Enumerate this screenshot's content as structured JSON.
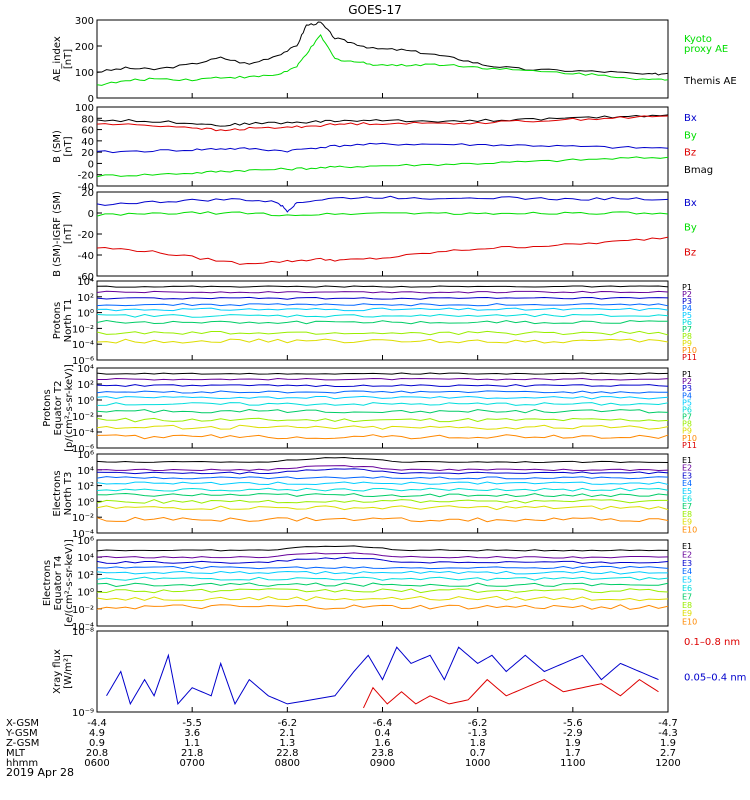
{
  "title": "GOES-17",
  "date_label": "2019 Apr 28",
  "colors": {
    "black": "#000000",
    "green": "#00dd00",
    "blue": "#0000cc",
    "red": "#dd0000",
    "prot": [
      "#000000",
      "#660099",
      "#0000cc",
      "#0066ff",
      "#00ccff",
      "#00dddd",
      "#00cc66",
      "#99ee00",
      "#dddd00",
      "#ff8800",
      "#dd0000"
    ]
  },
  "x_ticks": [
    "0600",
    "0700",
    "0800",
    "0900",
    "1000",
    "1100",
    "1200"
  ],
  "ephemeris": [
    {
      "label": "X-GSM",
      "values": [
        "-4.4",
        "-5.5",
        "-6.2",
        "-6.4",
        "-6.2",
        "-5.6",
        "-4.7"
      ]
    },
    {
      "label": "Y-GSM",
      "values": [
        "4.9",
        "3.6",
        "2.1",
        "0.4",
        "-1.3",
        "-2.9",
        "-4.3"
      ]
    },
    {
      "label": "Z-GSM",
      "values": [
        "0.9",
        "1.1",
        "1.3",
        "1.6",
        "1.8",
        "1.9",
        "1.9"
      ]
    },
    {
      "label": "MLT",
      "values": [
        "20.8",
        "21.8",
        "22.8",
        "23.8",
        "0.7",
        "1.7",
        "2.7"
      ]
    },
    {
      "label": "hhmm",
      "values": [
        "0600",
        "0700",
        "0800",
        "0900",
        "1000",
        "1100",
        "1200"
      ]
    }
  ],
  "chart_data": [
    {
      "type": "line",
      "id": "ae",
      "ylabel": [
        "AE_index",
        "[nT]"
      ],
      "ylim": [
        0,
        300
      ],
      "yticks": [
        "0",
        "100",
        "200",
        "300"
      ],
      "legend": [
        "Kyoto",
        "proxy AE",
        "Themis AE"
      ],
      "series": [
        {
          "name": "Themis AE",
          "x": [
            6.0,
            6.3,
            6.6,
            7.0,
            7.3,
            7.6,
            7.9,
            8.1,
            8.2,
            8.35,
            8.5,
            8.7,
            8.9,
            9.2,
            9.5,
            9.8,
            10.1,
            10.5,
            11.0,
            11.4,
            11.8,
            12.0
          ],
          "y": [
            100,
            115,
            110,
            130,
            155,
            130,
            165,
            200,
            280,
            290,
            230,
            210,
            190,
            185,
            170,
            150,
            125,
            110,
            105,
            100,
            90,
            95
          ]
        },
        {
          "name": "Kyoto proxy AE",
          "x": [
            6.0,
            6.3,
            6.6,
            7.0,
            7.3,
            7.6,
            7.9,
            8.1,
            8.2,
            8.35,
            8.5,
            8.7,
            8.9,
            9.2,
            9.5,
            9.8,
            10.1,
            10.5,
            11.0,
            11.4,
            11.8,
            12.0
          ],
          "y": [
            50,
            65,
            75,
            70,
            80,
            80,
            90,
            120,
            170,
            240,
            150,
            140,
            130,
            125,
            130,
            125,
            115,
            105,
            95,
            85,
            70,
            70
          ]
        }
      ]
    },
    {
      "type": "line",
      "id": "bsm",
      "ylabel": [
        "B (SM)",
        "[nT]"
      ],
      "ylim": [
        -40,
        100
      ],
      "yticks": [
        "-40",
        "-20",
        "0",
        "20",
        "40",
        "60",
        "80",
        "100"
      ],
      "legend": [
        "Bx",
        "By",
        "Bz",
        "Bmag"
      ],
      "series": [
        {
          "name": "Bmag",
          "x": [
            6.0,
            6.5,
            7.0,
            7.3,
            7.6,
            8.0,
            8.3,
            8.6,
            9.0,
            9.5,
            10.0,
            10.5,
            11.0,
            11.5,
            12.0
          ],
          "y": [
            77,
            75,
            72,
            67,
            71,
            72,
            74,
            76,
            76,
            75,
            76,
            78,
            80,
            83,
            86
          ]
        },
        {
          "name": "Bx",
          "x": [
            6.0,
            6.5,
            7.0,
            7.3,
            7.6,
            8.0,
            8.3,
            8.6,
            9.0,
            9.5,
            10.0,
            10.5,
            11.0,
            11.5,
            12.0
          ],
          "y": [
            20,
            22,
            24,
            26,
            26,
            22,
            28,
            32,
            34,
            34,
            33,
            32,
            30,
            28,
            27
          ]
        },
        {
          "name": "By",
          "x": [
            6.0,
            6.5,
            7.0,
            7.3,
            7.6,
            8.0,
            8.3,
            8.6,
            9.0,
            9.5,
            10.0,
            10.5,
            11.0,
            11.5,
            12.0
          ],
          "y": [
            -22,
            -20,
            -17,
            -14,
            -12,
            -10,
            -8,
            -6,
            -4,
            -2,
            0,
            3,
            6,
            9,
            11
          ]
        },
        {
          "name": "Bz",
          "x": [
            6.0,
            6.5,
            7.0,
            7.3,
            7.6,
            8.0,
            8.3,
            8.6,
            9.0,
            9.5,
            10.0,
            10.5,
            11.0,
            11.5,
            12.0
          ],
          "y": [
            70,
            68,
            64,
            58,
            62,
            64,
            67,
            70,
            71,
            71,
            72,
            75,
            78,
            81,
            84
          ]
        }
      ]
    },
    {
      "type": "line",
      "id": "bigrf",
      "ylabel": [
        "B (SM)-IGRF (SM)",
        "[nT]"
      ],
      "ylim": [
        -60,
        20
      ],
      "yticks": [
        "-60",
        "-40",
        "-20",
        "0",
        "20"
      ],
      "legend": [
        "Bx",
        "By",
        "Bz"
      ],
      "series": [
        {
          "name": "Bx",
          "x": [
            6.0,
            6.5,
            7.0,
            7.5,
            7.9,
            8.0,
            8.1,
            8.5,
            9.0,
            9.5,
            10.0,
            10.5,
            11.0,
            11.5,
            12.0
          ],
          "y": [
            8,
            10,
            12,
            13,
            10,
            2,
            10,
            14,
            15,
            14,
            15,
            14,
            13,
            14,
            13
          ]
        },
        {
          "name": "By",
          "x": [
            6.0,
            6.5,
            7.0,
            7.5,
            8.0,
            8.5,
            9.0,
            9.5,
            10.0,
            10.5,
            11.0,
            11.5,
            12.0
          ],
          "y": [
            -2,
            -1,
            0,
            0,
            -2,
            -1,
            0,
            0,
            -1,
            0,
            0,
            0,
            -1
          ]
        },
        {
          "name": "Bz",
          "x": [
            6.0,
            6.5,
            7.0,
            7.5,
            8.0,
            8.3,
            8.6,
            9.0,
            9.5,
            10.0,
            10.5,
            11.0,
            11.5,
            12.0
          ],
          "y": [
            -33,
            -36,
            -42,
            -48,
            -46,
            -44,
            -45,
            -43,
            -38,
            -34,
            -32,
            -30,
            -27,
            -23
          ]
        }
      ]
    },
    {
      "type": "line",
      "id": "protT1",
      "ylabel": [
        "Protons",
        "North T1"
      ],
      "log": true,
      "ylim": [
        -6,
        4
      ],
      "yticks": [
        "10⁴",
        "10²",
        "10⁰",
        "10⁻²",
        "10⁻⁴",
        "10⁻⁶"
      ],
      "channels": [
        "P1",
        "P2",
        "P3",
        "P4",
        "P5",
        "P6",
        "P7",
        "P8",
        "P9",
        "P10",
        "P11"
      ],
      "levels": [
        3.3,
        2.6,
        1.8,
        1.0,
        0.4,
        -0.4,
        -1.2,
        -2.6,
        -3.6,
        null,
        null
      ]
    },
    {
      "type": "line",
      "id": "protT2",
      "ylabel": [
        "Protons",
        "Equator T2",
        "[p/(cm²-s-sr-keV)]"
      ],
      "log": true,
      "ylim": [
        -6,
        4
      ],
      "yticks": [
        "10⁴",
        "10²",
        "10⁰",
        "10⁻²",
        "10⁻⁴",
        "10⁻⁶"
      ],
      "channels": [
        "P1",
        "P2",
        "P3",
        "P4",
        "P5",
        "P6",
        "P7",
        "P8",
        "P9",
        "P10",
        "P11"
      ],
      "levels": [
        3.3,
        2.6,
        1.8,
        1.0,
        0.3,
        -0.5,
        -1.4,
        -2.5,
        -3.4,
        -4.6,
        null
      ]
    },
    {
      "type": "line",
      "id": "elecT3",
      "ylabel": [
        "Electrons",
        "North T3"
      ],
      "log": true,
      "ylim": [
        -4,
        6
      ],
      "yticks": [
        "10⁶",
        "10⁴",
        "10²",
        "10⁰",
        "10⁻²",
        "10⁻⁴"
      ],
      "channels": [
        "E1",
        "E2",
        "E3",
        "E4",
        "E5",
        "E6",
        "E7",
        "E8",
        "E9",
        "E10"
      ],
      "levels": [
        5.0,
        4.0,
        3.6,
        3.0,
        2.3,
        1.5,
        0.8,
        0.0,
        -0.8,
        -2.3
      ]
    },
    {
      "type": "line",
      "id": "elecT4",
      "ylabel": [
        "Electrons",
        "Equator T4",
        "[e/(cm²-s-sr-keV)]"
      ],
      "log": true,
      "ylim": [
        -4,
        6
      ],
      "yticks": [
        "10⁶",
        "10⁴",
        "10²",
        "10⁰",
        "10⁻²",
        "10⁻⁴"
      ],
      "channels": [
        "E1",
        "E2",
        "E3",
        "E4",
        "E5",
        "E6",
        "E7",
        "E8",
        "E9",
        "E10"
      ],
      "levels": [
        4.8,
        4.0,
        3.4,
        2.8,
        2.2,
        1.5,
        0.8,
        0.1,
        -0.8,
        -1.8
      ]
    },
    {
      "type": "line",
      "id": "xray",
      "ylabel": [
        "Xray flux",
        "[W/m²]"
      ],
      "log": true,
      "ylim": [
        -9,
        -8
      ],
      "yticks": [
        "10⁻⁸",
        "10⁻⁹"
      ],
      "legend": [
        "0.1–0.8 nm",
        "0.05–0.4 nm"
      ],
      "series": [
        {
          "name": "0.05–0.4 nm",
          "x": [
            6.1,
            6.25,
            6.35,
            6.5,
            6.6,
            6.75,
            6.85,
            7.0,
            7.2,
            7.3,
            7.45,
            7.6,
            7.8,
            8.0,
            8.5,
            8.7,
            8.85,
            9.0,
            9.15,
            9.3,
            9.5,
            9.65,
            9.8,
            10.0,
            10.15,
            10.3,
            10.5,
            10.7,
            10.9,
            11.1,
            11.3,
            11.5,
            11.7,
            11.9
          ],
          "y": [
            -8.8,
            -8.5,
            -8.9,
            -8.6,
            -8.8,
            -8.3,
            -8.9,
            -8.7,
            -8.8,
            -8.4,
            -8.9,
            -8.6,
            -8.8,
            -8.9,
            -8.8,
            -8.5,
            -8.3,
            -8.6,
            -8.2,
            -8.4,
            -8.3,
            -8.6,
            -8.2,
            -8.4,
            -8.3,
            -8.5,
            -8.3,
            -8.5,
            -8.4,
            -8.3,
            -8.6,
            -8.4,
            -8.5,
            -8.6
          ]
        },
        {
          "name": "0.1–0.8 nm",
          "x": [
            8.8,
            8.9,
            9.05,
            9.2,
            9.35,
            9.5,
            9.7,
            9.9,
            10.1,
            10.3,
            10.5,
            10.7,
            10.9,
            11.1,
            11.3,
            11.5,
            11.7,
            11.9
          ],
          "y": [
            -8.95,
            -8.7,
            -8.9,
            -8.75,
            -8.9,
            -8.8,
            -8.9,
            -8.85,
            -8.6,
            -8.8,
            -8.7,
            -8.6,
            -8.75,
            -8.7,
            -8.65,
            -8.8,
            -8.6,
            -8.75
          ]
        }
      ]
    }
  ]
}
